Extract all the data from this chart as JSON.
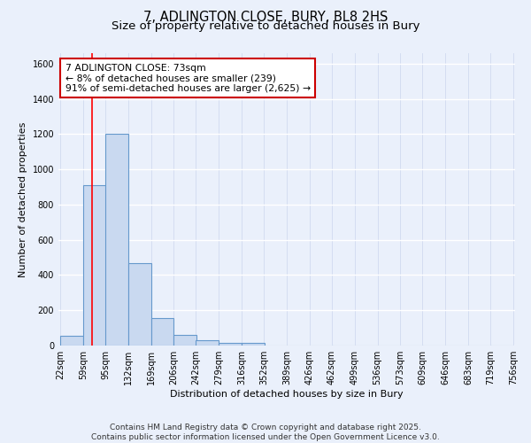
{
  "title": "7, ADLINGTON CLOSE, BURY, BL8 2HS",
  "subtitle": "Size of property relative to detached houses in Bury",
  "xlabel": "Distribution of detached houses by size in Bury",
  "ylabel": "Number of detached properties",
  "bin_edges": [
    22,
    59,
    95,
    132,
    169,
    206,
    242,
    279,
    316,
    352,
    389,
    426,
    462,
    499,
    536,
    573,
    609,
    646,
    683,
    719,
    756
  ],
  "bar_heights": [
    55,
    910,
    1200,
    470,
    155,
    60,
    30,
    15,
    15,
    0,
    0,
    0,
    0,
    0,
    0,
    0,
    0,
    0,
    0,
    0
  ],
  "bar_color": "#c9d9f0",
  "bar_edge_color": "#6699cc",
  "red_line_x": 73,
  "annotation_line1": "7 ADLINGTON CLOSE: 73sqm",
  "annotation_line2": "← 8% of detached houses are smaller (239)",
  "annotation_line3": "91% of semi-detached houses are larger (2,625) →",
  "annotation_box_color": "#ffffff",
  "annotation_box_edge_color": "#cc0000",
  "ylim": [
    0,
    1660
  ],
  "yticks": [
    0,
    200,
    400,
    600,
    800,
    1000,
    1200,
    1400,
    1600
  ],
  "background_color": "#eaf0fb",
  "grid_color": "#d0daf0",
  "footer_line1": "Contains HM Land Registry data © Crown copyright and database right 2025.",
  "footer_line2": "Contains public sector information licensed under the Open Government Licence v3.0.",
  "title_fontsize": 10.5,
  "subtitle_fontsize": 9.5,
  "axis_label_fontsize": 8,
  "tick_fontsize": 7,
  "annotation_fontsize": 7.8,
  "footer_fontsize": 6.5
}
